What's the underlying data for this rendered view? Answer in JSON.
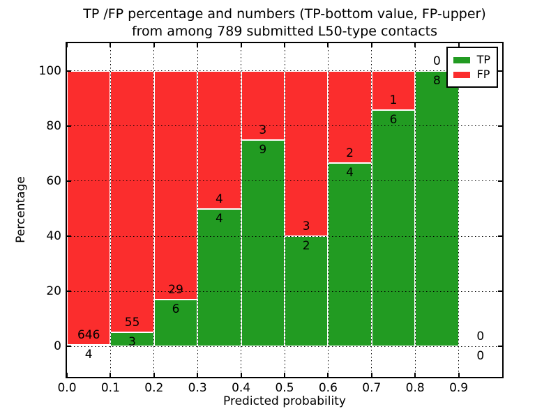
{
  "title": {
    "line1": "TP /FP percentage and numbers (TP-bottom value, FP-upper)",
    "line2": "from among 789 submitted L50-type contacts"
  },
  "chart_data": {
    "type": "bar",
    "stacked": true,
    "orientation": "vertical",
    "title": "TP /FP percentage and numbers (TP-bottom value, FP-upper)\nfrom among 789 submitted L50-type contacts",
    "xlabel": "Predicted probability",
    "ylabel": "Percentage",
    "total_submitted_contacts": 789,
    "xlim": [
      0.0,
      1.0
    ],
    "ylim": [
      -11,
      110
    ],
    "xticks": [
      0.0,
      0.1,
      0.2,
      0.3,
      0.4,
      0.5,
      0.6,
      0.7,
      0.8,
      0.9
    ],
    "xtick_labels": [
      "0.0",
      "0.1",
      "0.2",
      "0.3",
      "0.4",
      "0.5",
      "0.6",
      "0.7",
      "0.8",
      "0.9"
    ],
    "yticks": [
      0,
      20,
      40,
      60,
      80,
      100
    ],
    "ytick_labels": [
      "0",
      "20",
      "40",
      "60",
      "80",
      "100"
    ],
    "grid": {
      "visible": true,
      "style": "dotted",
      "color": "#000000",
      "drawn_above_bars": true
    },
    "bar_width": 0.1,
    "colors": {
      "tp": "#229b22",
      "fp": "#fb2d2d",
      "bar_edge": "#ffffff"
    },
    "legend": {
      "position": "upper-right",
      "entries": [
        {
          "label": "TP",
          "color": "#229b22"
        },
        {
          "label": "FP",
          "color": "#fb2d2d"
        }
      ]
    },
    "bins": [
      {
        "x_start": 0.0,
        "x_end": 0.1,
        "tp": 4,
        "fp": 646,
        "tp_percent": 0.62
      },
      {
        "x_start": 0.1,
        "x_end": 0.2,
        "tp": 3,
        "fp": 55,
        "tp_percent": 5.17
      },
      {
        "x_start": 0.2,
        "x_end": 0.3,
        "tp": 6,
        "fp": 29,
        "tp_percent": 17.14
      },
      {
        "x_start": 0.3,
        "x_end": 0.4,
        "tp": 4,
        "fp": 4,
        "tp_percent": 50.0
      },
      {
        "x_start": 0.4,
        "x_end": 0.5,
        "tp": 9,
        "fp": 3,
        "tp_percent": 75.0
      },
      {
        "x_start": 0.5,
        "x_end": 0.6,
        "tp": 2,
        "fp": 3,
        "tp_percent": 40.0
      },
      {
        "x_start": 0.6,
        "x_end": 0.7,
        "tp": 4,
        "fp": 2,
        "tp_percent": 66.67
      },
      {
        "x_start": 0.7,
        "x_end": 0.8,
        "tp": 6,
        "fp": 1,
        "tp_percent": 85.71
      },
      {
        "x_start": 0.8,
        "x_end": 0.9,
        "tp": 8,
        "fp": 0,
        "tp_percent": 100.0
      },
      {
        "x_start": 0.9,
        "x_end": 1.0,
        "tp": 0,
        "fp": 0,
        "tp_percent": 0.0
      }
    ]
  }
}
